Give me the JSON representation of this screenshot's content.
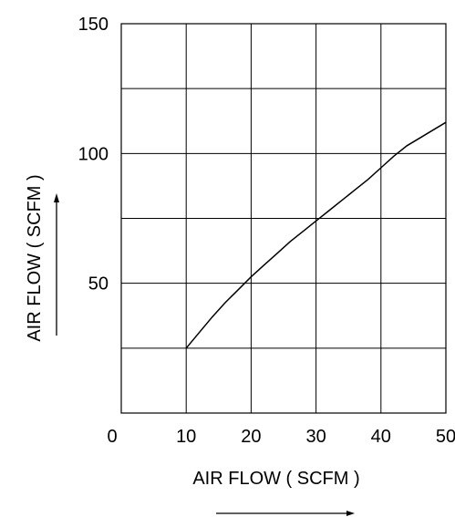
{
  "chart_data": {
    "type": "line",
    "title": "",
    "xlabel": "AIR FLOW ( SCFM )",
    "ylabel": "AIR FLOW ( SCFM )",
    "xlim": [
      0,
      50
    ],
    "ylim": [
      0,
      150
    ],
    "x_ticks": [
      "0",
      "10",
      "20",
      "30",
      "40",
      "50"
    ],
    "y_ticks": [
      "50",
      "100",
      "150"
    ],
    "grid": true,
    "series": [
      {
        "x": [
          10,
          12,
          14,
          16,
          18,
          20,
          22,
          24,
          26,
          28,
          30,
          32,
          34,
          36,
          38,
          40,
          42,
          44,
          46,
          48,
          50
        ],
        "values": [
          25,
          31,
          37,
          42.5,
          47.5,
          52.5,
          57,
          61.5,
          66,
          70,
          74,
          78,
          82,
          86,
          90,
          94.5,
          99,
          103,
          106,
          109,
          112
        ]
      }
    ]
  }
}
